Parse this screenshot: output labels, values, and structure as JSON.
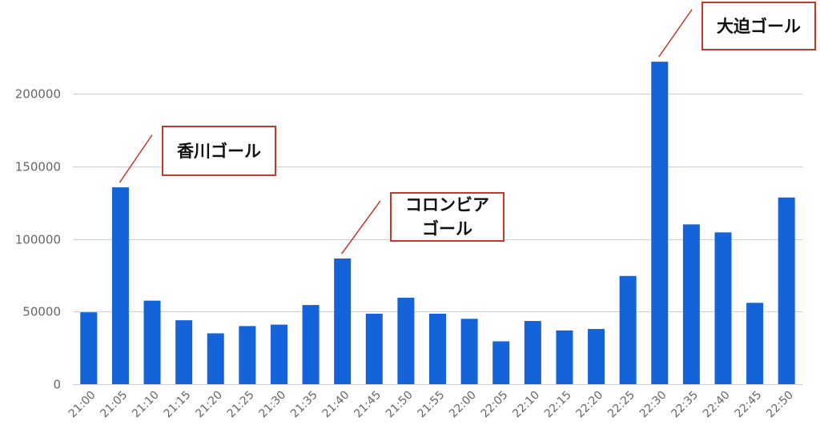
{
  "chart_data": {
    "type": "bar",
    "categories": [
      "21:00",
      "21:05",
      "21:10",
      "21:15",
      "21:20",
      "21:25",
      "21:30",
      "21:35",
      "21:40",
      "21:45",
      "21:50",
      "21:55",
      "22:00",
      "22:05",
      "22:10",
      "22:15",
      "22:20",
      "22:25",
      "22:30",
      "22:35",
      "22:40",
      "22:45",
      "22:50"
    ],
    "values": [
      49500,
      135500,
      57500,
      44000,
      35000,
      40000,
      41000,
      54500,
      86500,
      48500,
      59500,
      48500,
      45000,
      29500,
      43500,
      37000,
      38000,
      74500,
      222000,
      110000,
      104500,
      56000,
      128500
    ],
    "ylim": [
      0,
      200000
    ],
    "yticks": [
      0,
      50000,
      100000,
      150000,
      200000
    ],
    "grid": true,
    "bar_color": "#1463d8",
    "grid_color": "#d0d0d0",
    "annotations": [
      {
        "category": "21:05",
        "lines": [
          "香川ゴール"
        ]
      },
      {
        "category": "21:40",
        "lines": [
          "コロンビア",
          "ゴール"
        ]
      },
      {
        "category": "22:30",
        "lines": [
          "大迫ゴール"
        ]
      }
    ],
    "annotation_border_color": "#c0392b"
  }
}
